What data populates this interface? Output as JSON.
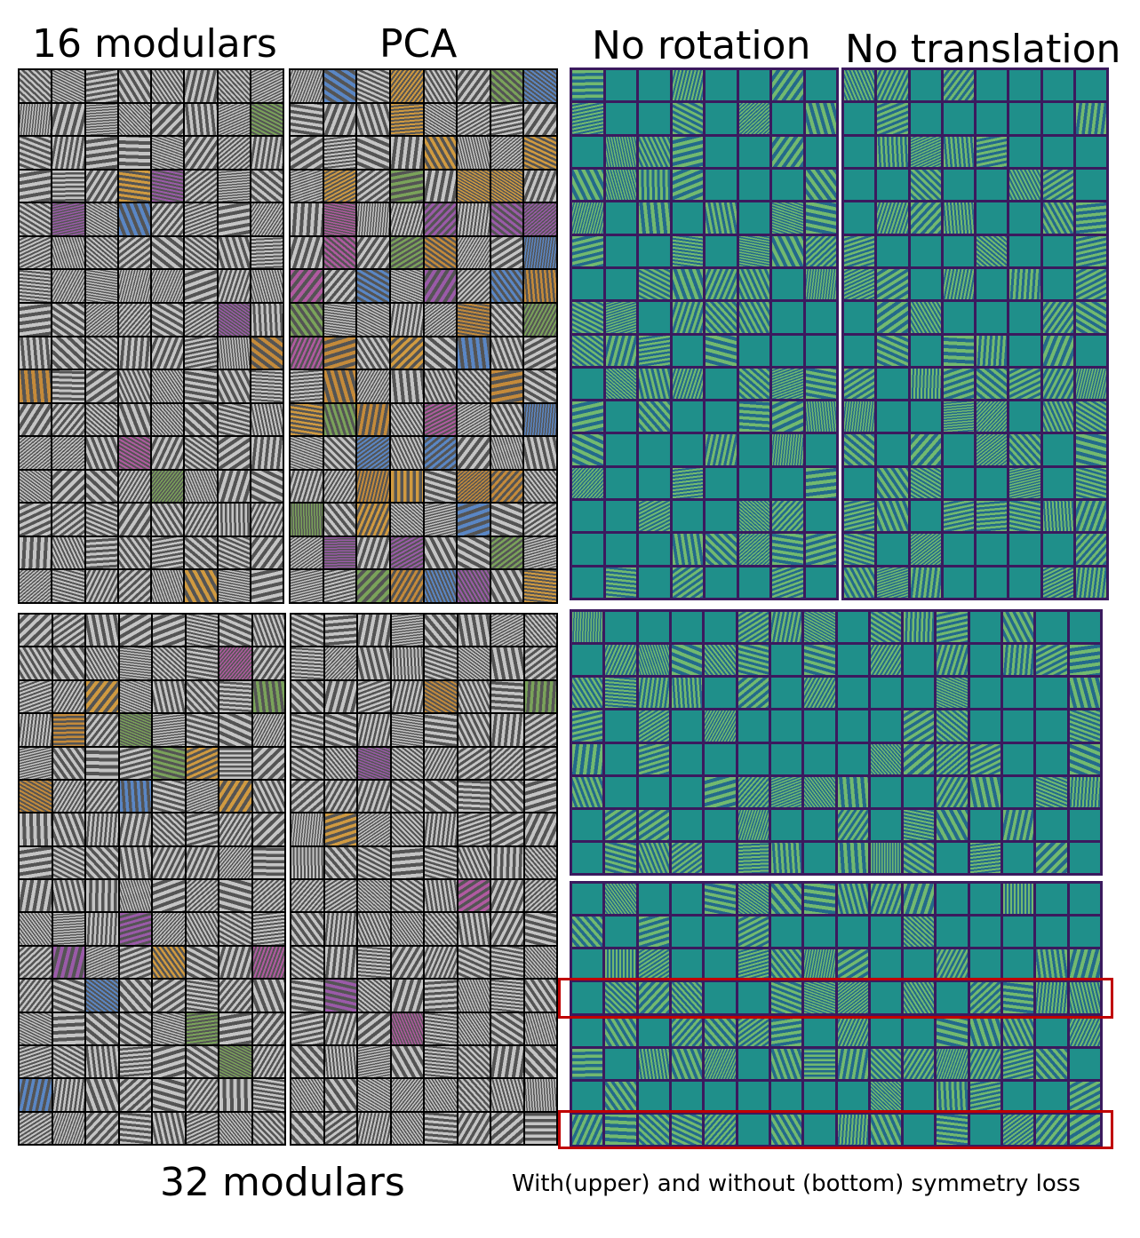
{
  "labels": {
    "modular16": "16 modulars",
    "pca": "PCA",
    "no_rotation": "No rotation",
    "no_translation": "No translation",
    "modular32": "32 modulars",
    "caption": "With(upper) and without (bottom) symmetry loss"
  },
  "panels": [
    {
      "id": "modular16",
      "palette": "gray",
      "cols": 8,
      "rows": 16
    },
    {
      "id": "pca16",
      "palette": "gray-color",
      "cols": 8,
      "rows": 16
    },
    {
      "id": "no-rotation",
      "palette": "teal",
      "cols": 8,
      "rows": 16
    },
    {
      "id": "no-translation",
      "palette": "teal",
      "cols": 8,
      "rows": 16
    },
    {
      "id": "modular32",
      "palette": "gray",
      "cols": 8,
      "rows": 16
    },
    {
      "id": "pca32",
      "palette": "gray",
      "cols": 8,
      "rows": 16
    },
    {
      "id": "symmetry-upper",
      "palette": "teal",
      "cols": 16,
      "rows": 8
    },
    {
      "id": "symmetry-lower",
      "palette": "teal",
      "cols": 16,
      "rows": 8
    }
  ],
  "colors": {
    "teal": "#1f8f8a",
    "teal_border": "#3b1a5e",
    "gray": "#8a8a8a",
    "highlight": "#c00000"
  }
}
